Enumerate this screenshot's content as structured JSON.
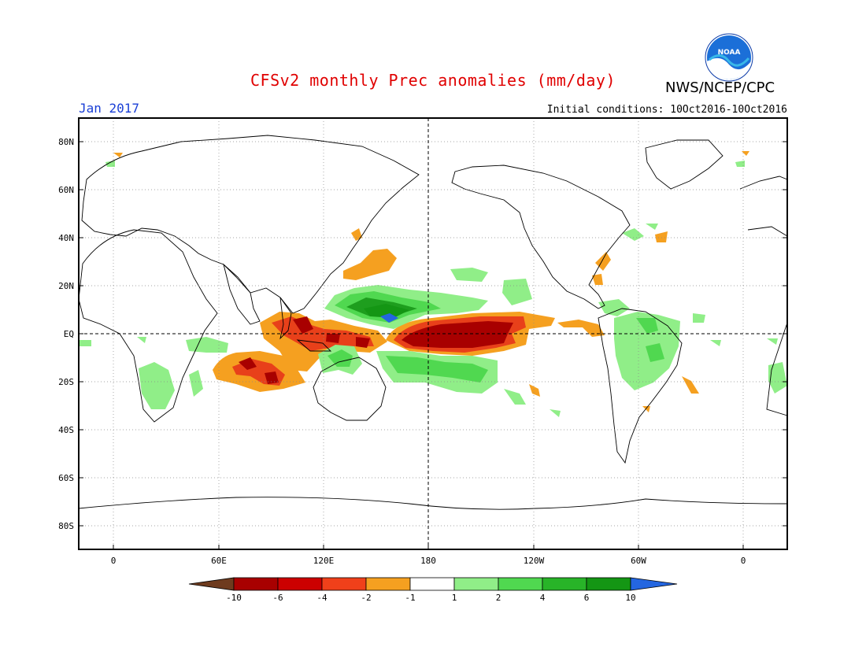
{
  "header": {
    "title": "CFSv2 monthly Prec anomalies (mm/day)",
    "agency": "NWS/NCEP/CPC",
    "logo_text": "NOAA",
    "month": "Jan 2017",
    "initial_conditions": "Initial conditions: 10Oct2016-10Oct2016"
  },
  "map": {
    "lat_labels": [
      "80N",
      "60N",
      "40N",
      "20N",
      "EQ",
      "20S",
      "40S",
      "60S",
      "80S"
    ],
    "lon_labels": [
      "0",
      "60E",
      "120E",
      "180",
      "120W",
      "60W",
      "0"
    ],
    "grid": "dotted",
    "reference_lines": [
      "equator",
      "dateline"
    ]
  },
  "colorbar": {
    "tick_labels": [
      "-10",
      "-6",
      "-4",
      "-2",
      "-1",
      "1",
      "2",
      "4",
      "6",
      "10"
    ],
    "colors": [
      "#6e3b1e",
      "#a80000",
      "#cc0000",
      "#f0401a",
      "#f5a020",
      "#ffffff",
      "#90ee88",
      "#50d850",
      "#28b428",
      "#149614",
      "#2466e0"
    ]
  },
  "anomaly_colors": {
    "very_dry": "#a80000",
    "dry": "#e8401a",
    "slightly_dry": "#f5a020",
    "slightly_wet": "#90ee88",
    "wet": "#50d850",
    "very_wet": "#1e9e1e",
    "extreme_wet": "#2466e0"
  }
}
